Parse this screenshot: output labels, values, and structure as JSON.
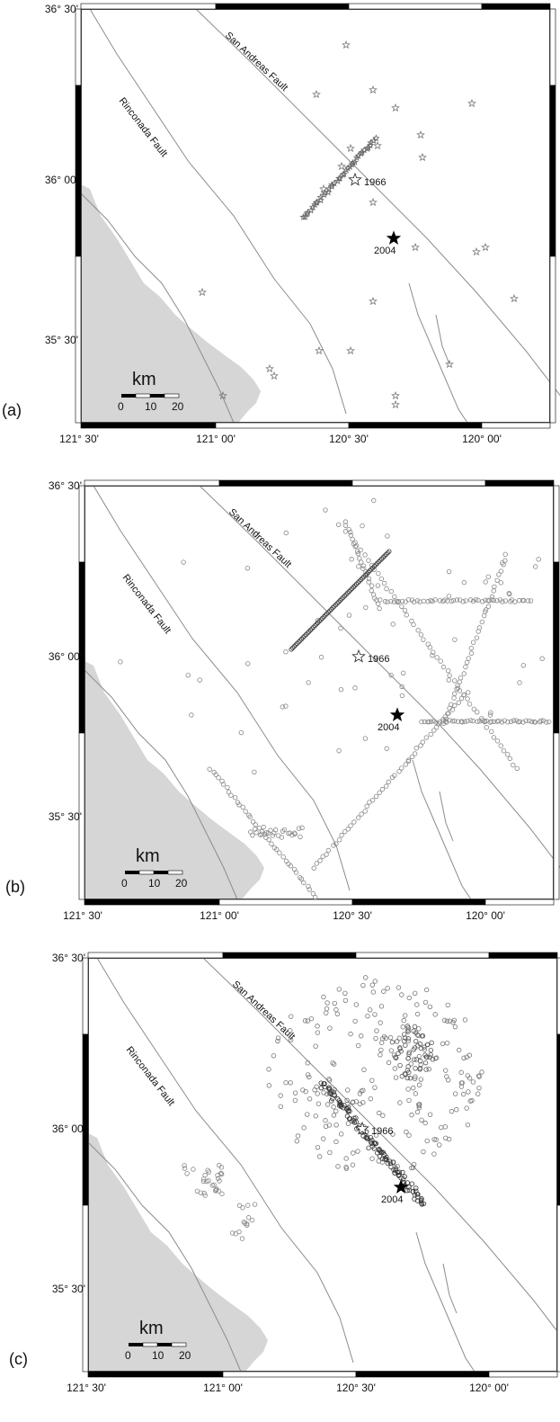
{
  "panels": [
    {
      "id": "a",
      "label": "(a)",
      "corner_lat": "36° 30'",
      "lat_ticks": [
        "36° 00'",
        "35° 30'"
      ],
      "lon_ticks": [
        "121° 30'",
        "121° 00'",
        "120° 30'",
        "120° 00'"
      ],
      "fault_labels": [
        "San Andreas Fault",
        "Rinconada Fault"
      ],
      "event_labels": [
        "1966",
        "2004"
      ],
      "scale": {
        "unit": "km",
        "ticks": [
          "0",
          "10",
          "20"
        ]
      },
      "marker_style": "star"
    },
    {
      "id": "b",
      "label": "(b)",
      "corner_lat": "36° 30'",
      "lat_ticks": [
        "36° 00'",
        "35° 30'"
      ],
      "lon_ticks": [
        "121° 30'",
        "121° 00'",
        "120° 30'",
        "120° 00'"
      ],
      "fault_labels": [
        "San Andreas Fault",
        "Rinconada Fault"
      ],
      "event_labels": [
        "1966",
        "2004"
      ],
      "scale": {
        "unit": "km",
        "ticks": [
          "0",
          "10",
          "20"
        ]
      },
      "marker_style": "circle"
    },
    {
      "id": "c",
      "label": "(c)",
      "corner_lat": "36° 30'",
      "lat_ticks": [
        "36° 00'",
        "35° 30'"
      ],
      "lon_ticks": [
        "121° 30'",
        "121° 00'",
        "120° 30'",
        "120° 00'"
      ],
      "fault_labels": [
        "San Andreas Fault",
        "Rinconada Fault"
      ],
      "event_labels": [
        "1966",
        "2004"
      ],
      "scale": {
        "unit": "km",
        "ticks": [
          "0",
          "10",
          "20"
        ]
      },
      "marker_style": "circle"
    }
  ],
  "colors": {
    "land": "#ffffff",
    "ocean": "#d6d6d6",
    "fault": "#8c8c8c",
    "marker": "#777777",
    "frame": "#000000"
  }
}
